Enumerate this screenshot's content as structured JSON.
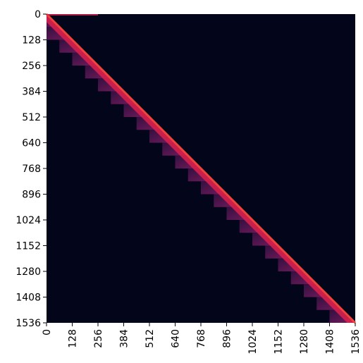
{
  "chart_data": {
    "type": "heatmap",
    "title": "",
    "xlabel": "",
    "ylabel": "",
    "matrix_size": 1536,
    "block_size": 64,
    "band_width": 64,
    "sink_tokens": 256,
    "x_ticks": [
      "0",
      "128",
      "256",
      "384",
      "512",
      "640",
      "768",
      "896",
      "1024",
      "1152",
      "1280",
      "1408",
      "1536"
    ],
    "y_ticks": [
      "0",
      "128",
      "256",
      "384",
      "512",
      "640",
      "768",
      "896",
      "1024",
      "1152",
      "1280",
      "1408",
      "1536"
    ],
    "x_tick_values": [
      0,
      128,
      256,
      384,
      512,
      640,
      768,
      896,
      1024,
      1152,
      1280,
      1408,
      1536
    ],
    "y_tick_values": [
      0,
      128,
      256,
      384,
      512,
      640,
      768,
      896,
      1024,
      1152,
      1280,
      1408,
      1536
    ],
    "xlim": [
      0,
      1536
    ],
    "ylim": [
      0,
      1536
    ],
    "grid": false,
    "colors": {
      "background": "#03051a",
      "diagonal": "#f0433a",
      "mid": "#d6204d",
      "band": "#8a1e6a",
      "faint": "#3a1345"
    }
  }
}
